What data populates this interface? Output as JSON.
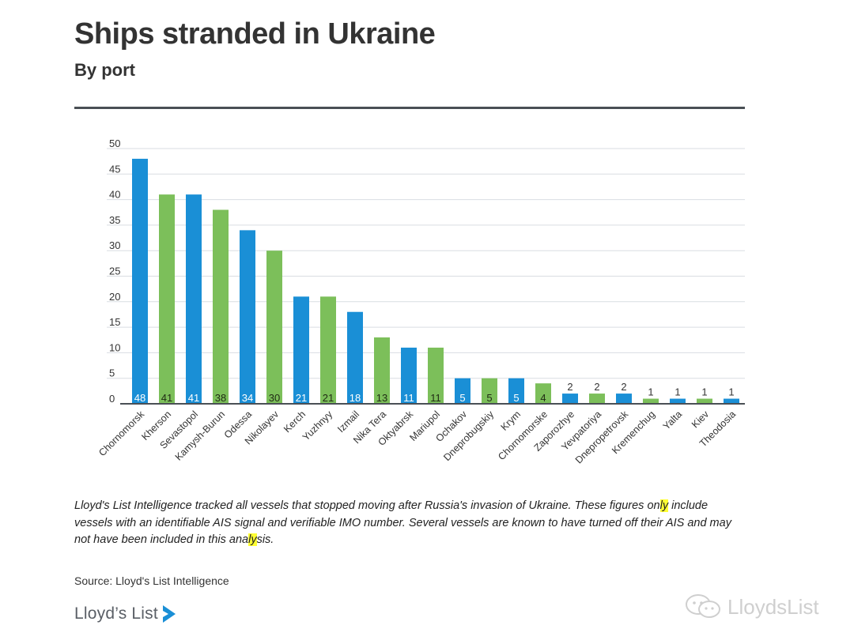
{
  "header": {
    "title": "Ships stranded in Ukraine",
    "subtitle": "By port"
  },
  "colors": {
    "blue": "#1a8fd6",
    "green": "#7cbf5a",
    "grid": "#d9dde2",
    "axis": "#4a4f55",
    "highlight": "#ffff33"
  },
  "chart_data": {
    "type": "bar",
    "title": "Ships stranded in Ukraine",
    "subtitle": "By port",
    "xlabel": "",
    "ylabel": "",
    "ylim": [
      0,
      50
    ],
    "yticks": [
      0,
      5,
      10,
      15,
      20,
      25,
      30,
      35,
      40,
      45,
      50
    ],
    "grid": true,
    "legend": "none",
    "categories": [
      "Chornomorsk",
      "Kherson",
      "Sevastopol",
      "Kamysh-Burun",
      "Odessa",
      "Nikolayev",
      "Kerch",
      "Yuzhnyy",
      "Izmail",
      "Nika Tera",
      "Oktyabrsk",
      "Mariupol",
      "Ochakov",
      "Dneprobugskiy",
      "Krym",
      "Chornomorske",
      "Zaporozhye",
      "Yevpatoriya",
      "Dnepropetrovsk",
      "Kremenchug",
      "Yalta",
      "Kiev",
      "Theodosia"
    ],
    "values": [
      48,
      41,
      41,
      38,
      34,
      30,
      21,
      21,
      18,
      13,
      11,
      11,
      5,
      5,
      5,
      4,
      2,
      2,
      2,
      1,
      1,
      1,
      1
    ],
    "bar_colors": [
      "blue",
      "green",
      "blue",
      "green",
      "blue",
      "green",
      "blue",
      "green",
      "blue",
      "green",
      "blue",
      "green",
      "blue",
      "green",
      "blue",
      "green",
      "blue",
      "green",
      "blue",
      "green",
      "blue",
      "green",
      "blue"
    ]
  },
  "note": {
    "part1": "Lloyd's List Intelligence tracked all vessels that stopped moving after Russia's invasion of Ukraine. These figures on",
    "hl1": "ly",
    "part2": " include vessels with an identifiable AIS signal and verifiable IMO number. Several vessels are known to have turned off their AIS and may not have been included in this ana",
    "hl2": "ly",
    "part3": "sis."
  },
  "source": "Source: Lloyd's List Intelligence",
  "brand": {
    "name": "Lloyd’s List"
  },
  "watermark": {
    "text": "LloydsList"
  }
}
